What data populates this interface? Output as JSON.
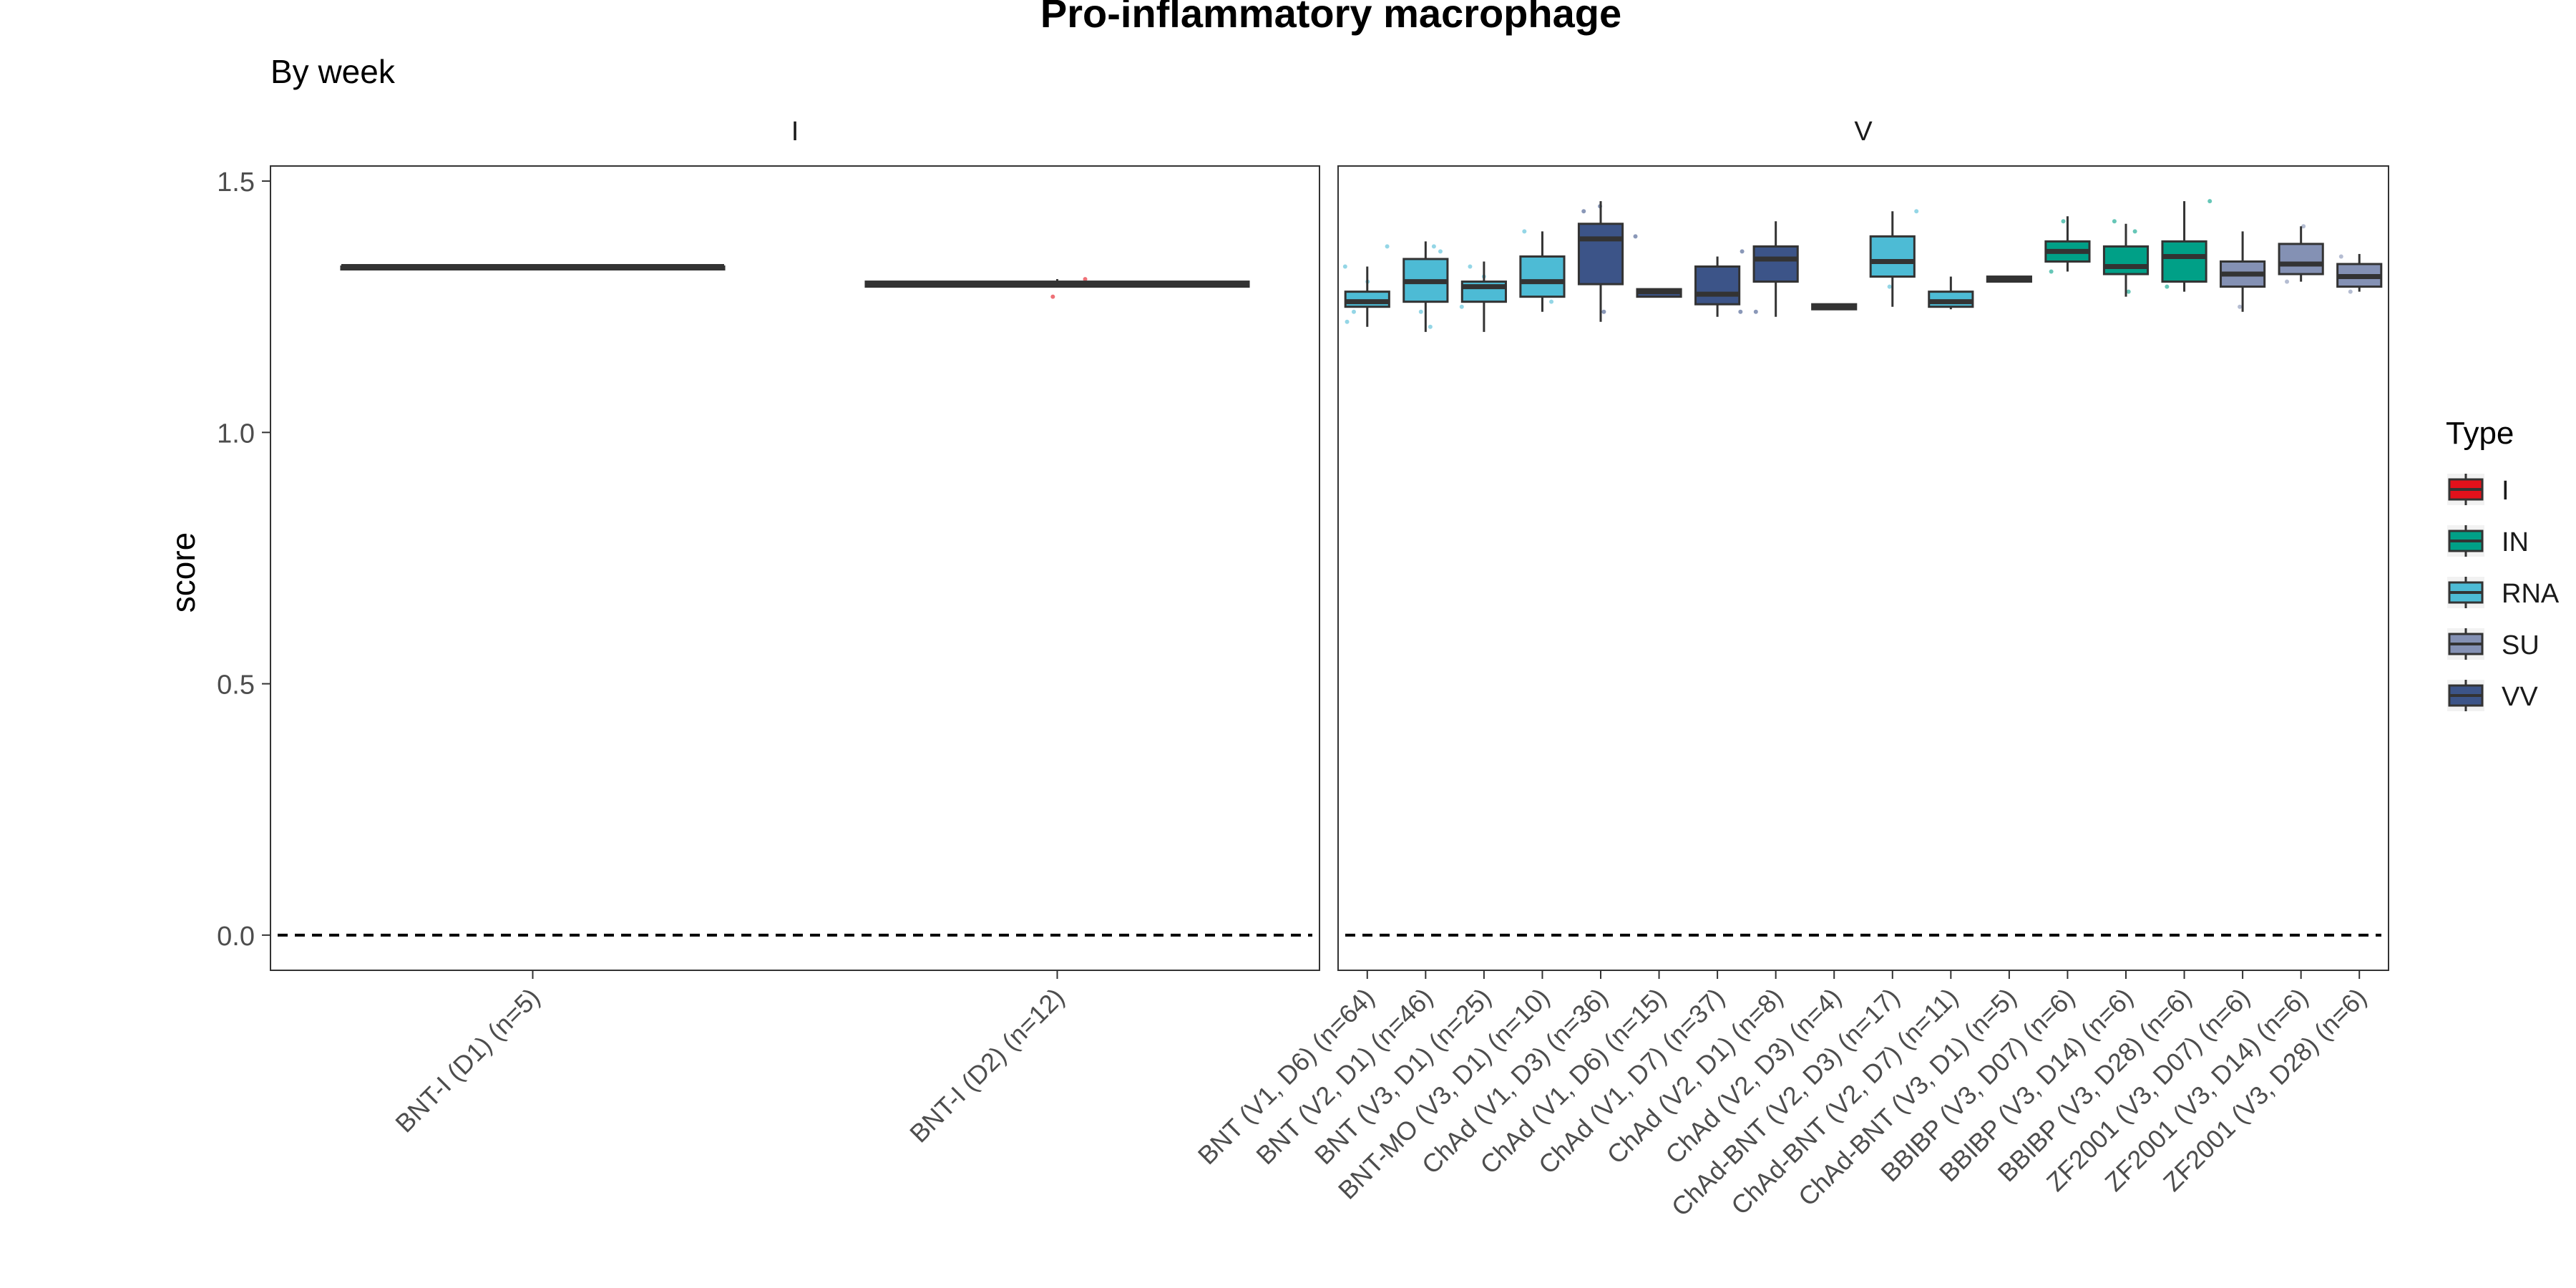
{
  "chart_data": {
    "type": "box",
    "title": "Pro-inflammatory macrophage",
    "subtitle": "By week",
    "ylabel": "score",
    "xlabel": "",
    "ylim": [
      -0.07,
      1.53
    ],
    "yticks": [
      0.0,
      0.5,
      1.0,
      1.5
    ],
    "ytick_labels": [
      "0.0",
      "0.5",
      "1.0",
      "1.5"
    ],
    "reference_line": 0,
    "grid": false,
    "legend": {
      "title": "Type",
      "position": "right",
      "items": [
        {
          "name": "I",
          "color": "#E3111B"
        },
        {
          "name": "IN",
          "color": "#00A087"
        },
        {
          "name": "RNA",
          "color": "#4DBBD5"
        },
        {
          "name": "SU",
          "color": "#8491B4"
        },
        {
          "name": "VV",
          "color": "#3C5488"
        }
      ]
    },
    "panels": [
      {
        "name": "I",
        "groups": [
          {
            "label": "BNT-I (D1) (n=5)",
            "type": "I",
            "min": 1.33,
            "q1": 1.33,
            "median": 1.33,
            "q3": 1.33,
            "max": 1.33,
            "points": []
          },
          {
            "label": "BNT-I (D2) (n=12)",
            "type": "I",
            "min": 1.29,
            "q1": 1.29,
            "median": 1.295,
            "q3": 1.3,
            "max": 1.305,
            "points": [
              1.27,
              1.305
            ]
          }
        ]
      },
      {
        "name": "V",
        "groups": [
          {
            "label": "BNT (V1, D6) (n=64)",
            "type": "RNA",
            "min": 1.21,
            "q1": 1.25,
            "median": 1.26,
            "q3": 1.28,
            "max": 1.33,
            "points": [
              1.22,
              1.24,
              1.27,
              1.3,
              1.33,
              1.37
            ]
          },
          {
            "label": "BNT (V2, D1) (n=46)",
            "type": "RNA",
            "min": 1.2,
            "q1": 1.26,
            "median": 1.3,
            "q3": 1.345,
            "max": 1.38,
            "points": [
              1.21,
              1.24,
              1.33,
              1.36,
              1.37
            ]
          },
          {
            "label": "BNT (V3, D1) (n=25)",
            "type": "RNA",
            "min": 1.2,
            "q1": 1.26,
            "median": 1.29,
            "q3": 1.3,
            "max": 1.34,
            "points": [
              1.25,
              1.31,
              1.33
            ]
          },
          {
            "label": "BNT-MO (V3, D1) (n=10)",
            "type": "RNA",
            "min": 1.24,
            "q1": 1.27,
            "median": 1.3,
            "q3": 1.35,
            "max": 1.4,
            "points": [
              1.26,
              1.4
            ]
          },
          {
            "label": "ChAd (V1, D3) (n=36)",
            "type": "VV",
            "min": 1.22,
            "q1": 1.295,
            "median": 1.385,
            "q3": 1.415,
            "max": 1.46,
            "points": [
              1.24,
              1.45,
              1.44
            ]
          },
          {
            "label": "ChAd (V1, D6) (n=15)",
            "type": "VV",
            "min": 1.27,
            "q1": 1.27,
            "median": 1.28,
            "q3": 1.285,
            "max": 1.285,
            "points": [
              1.39
            ]
          },
          {
            "label": "ChAd (V1, D7) (n=37)",
            "type": "VV",
            "min": 1.23,
            "q1": 1.255,
            "median": 1.275,
            "q3": 1.33,
            "max": 1.35,
            "points": [
              1.24,
              1.36
            ]
          },
          {
            "label": "ChAd (V2, D1) (n=8)",
            "type": "VV",
            "min": 1.23,
            "q1": 1.3,
            "median": 1.345,
            "q3": 1.37,
            "max": 1.42,
            "points": [
              1.24
            ]
          },
          {
            "label": "ChAd (V2, D3) (n=4)",
            "type": "VV",
            "min": 1.245,
            "q1": 1.245,
            "median": 1.25,
            "q3": 1.255,
            "max": 1.255,
            "points": []
          },
          {
            "label": "ChAd-BNT (V2, D3) (n=17)",
            "type": "RNA",
            "min": 1.25,
            "q1": 1.31,
            "median": 1.34,
            "q3": 1.39,
            "max": 1.44,
            "points": [
              1.29,
              1.44
            ]
          },
          {
            "label": "ChAd-BNT (V2, D7) (n=11)",
            "type": "RNA",
            "min": 1.245,
            "q1": 1.25,
            "median": 1.26,
            "q3": 1.28,
            "max": 1.31,
            "points": []
          },
          {
            "label": "ChAd-BNT (V3, D1) (n=5)",
            "type": "RNA",
            "min": 1.3,
            "q1": 1.3,
            "median": 1.305,
            "q3": 1.31,
            "max": 1.31,
            "points": []
          },
          {
            "label": "BBIBP (V3, D07) (n=6)",
            "type": "IN",
            "min": 1.32,
            "q1": 1.34,
            "median": 1.36,
            "q3": 1.38,
            "max": 1.43,
            "points": [
              1.32,
              1.42
            ]
          },
          {
            "label": "BBIBP (V3, D14) (n=6)",
            "type": "IN",
            "min": 1.27,
            "q1": 1.315,
            "median": 1.33,
            "q3": 1.37,
            "max": 1.415,
            "points": [
              1.28,
              1.4,
              1.42
            ]
          },
          {
            "label": "BBIBP (V3, D28) (n=6)",
            "type": "IN",
            "min": 1.28,
            "q1": 1.3,
            "median": 1.35,
            "q3": 1.38,
            "max": 1.46,
            "points": [
              1.29,
              1.46
            ]
          },
          {
            "label": "ZF2001 (V3, D07) (n=6)",
            "type": "SU",
            "min": 1.24,
            "q1": 1.29,
            "median": 1.315,
            "q3": 1.34,
            "max": 1.4,
            "points": [
              1.25
            ]
          },
          {
            "label": "ZF2001 (V3, D14) (n=6)",
            "type": "SU",
            "min": 1.3,
            "q1": 1.315,
            "median": 1.335,
            "q3": 1.375,
            "max": 1.41,
            "points": [
              1.3,
              1.41
            ]
          },
          {
            "label": "ZF2001 (V3, D28) (n=6)",
            "type": "SU",
            "min": 1.28,
            "q1": 1.29,
            "median": 1.31,
            "q3": 1.335,
            "max": 1.355,
            "points": [
              1.28,
              1.35
            ]
          }
        ]
      }
    ]
  }
}
